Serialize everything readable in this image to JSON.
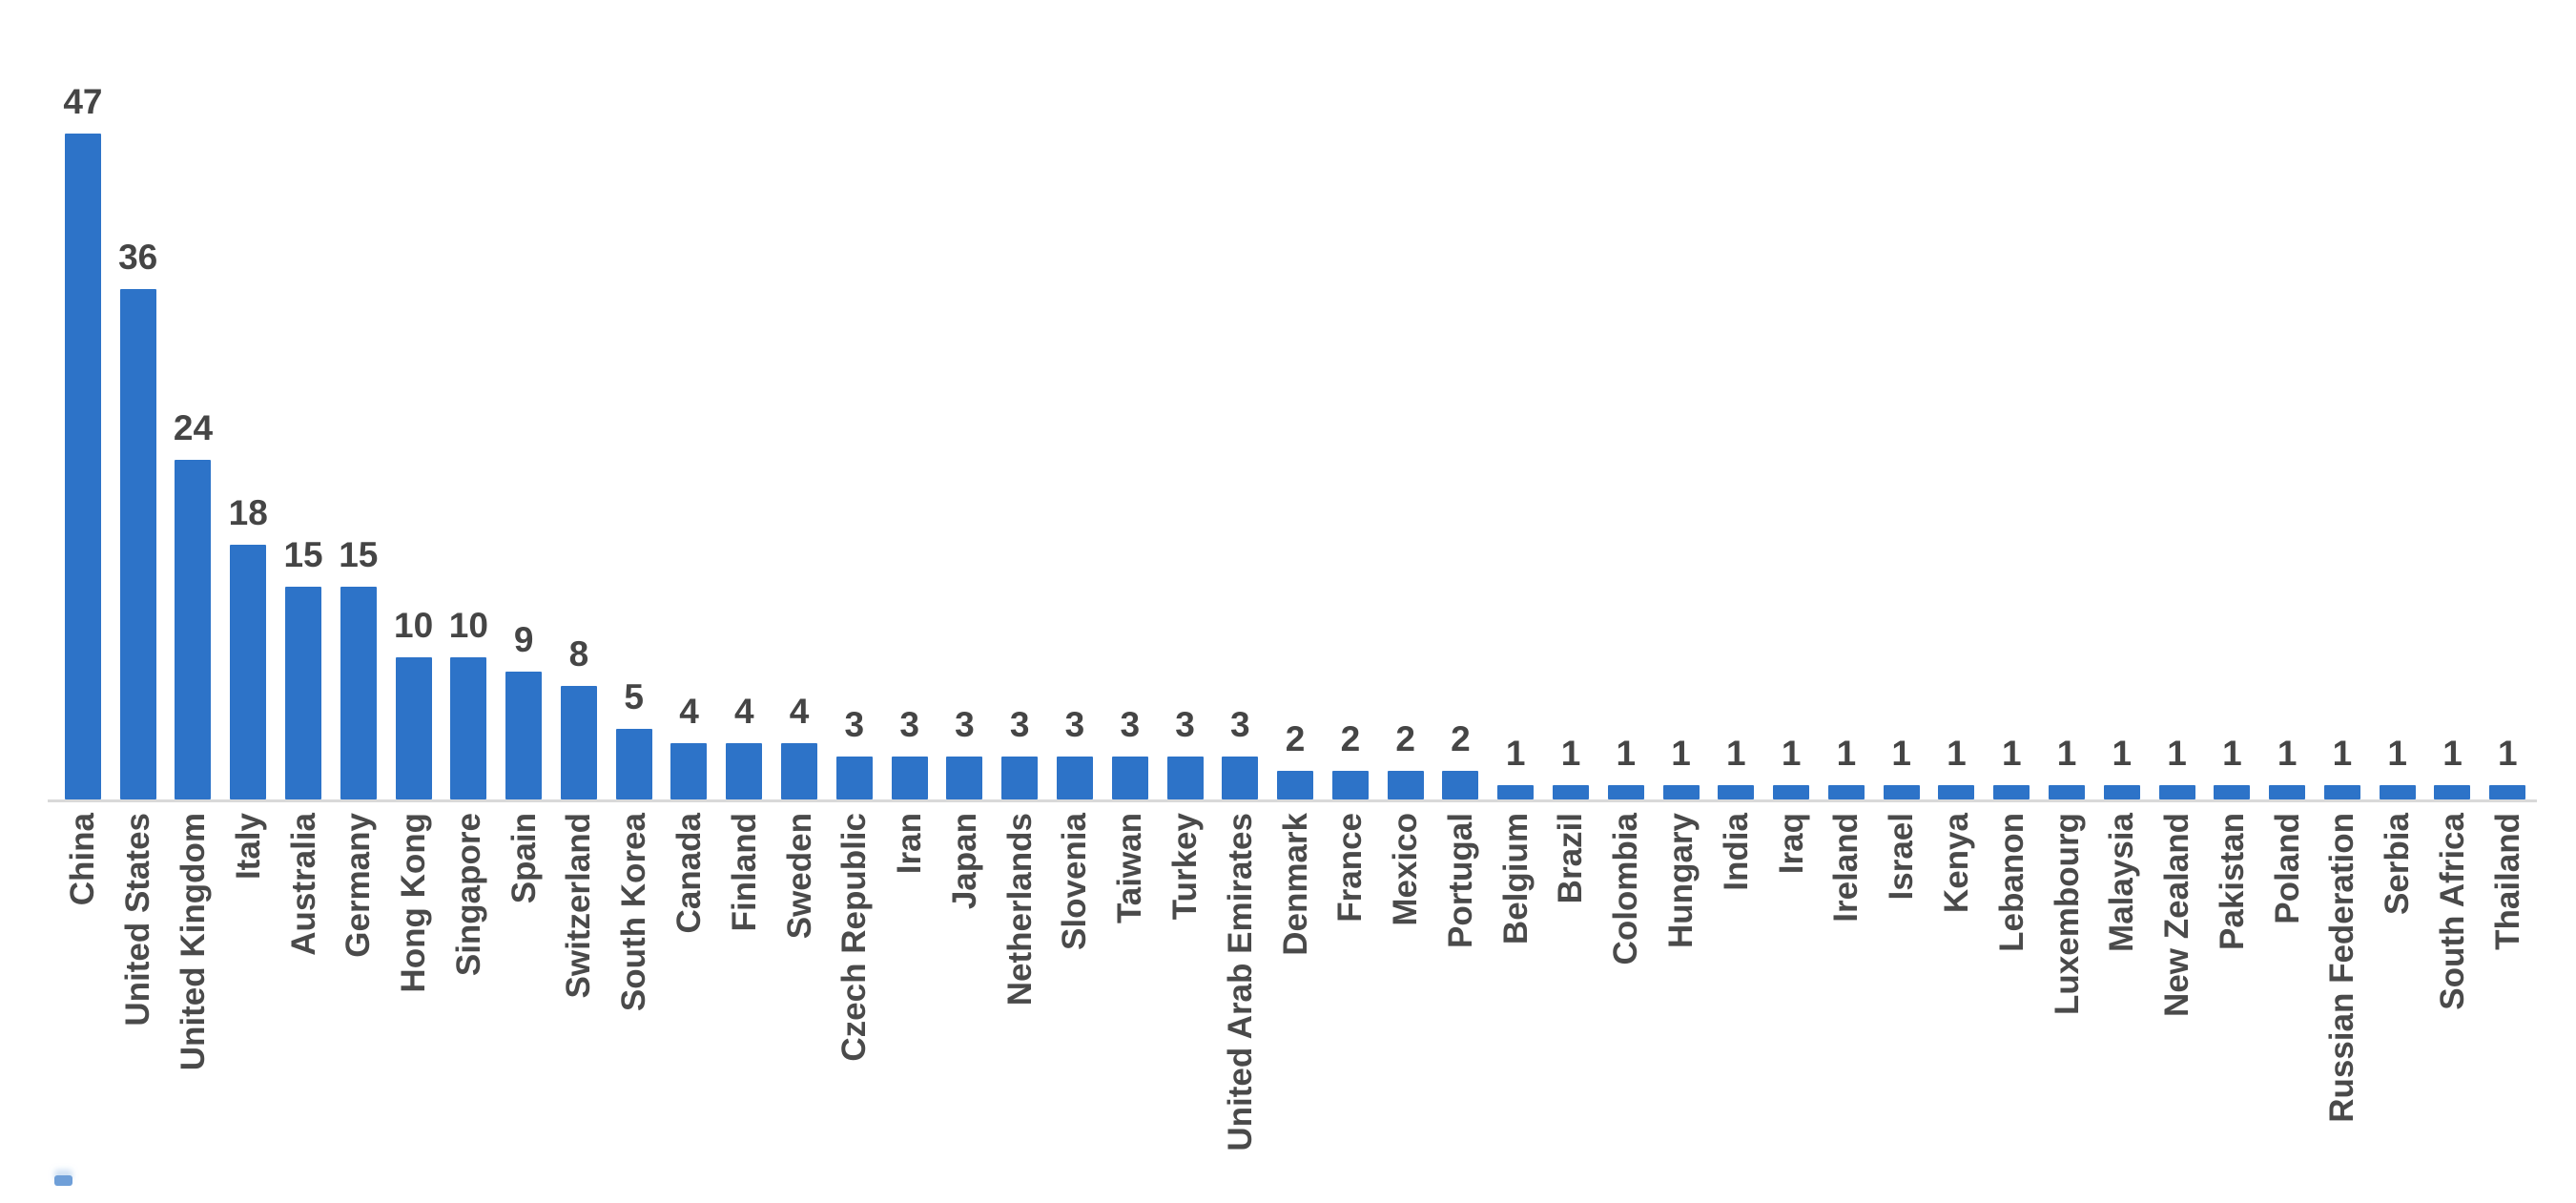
{
  "chart_data": {
    "type": "bar",
    "title": "",
    "xlabel": "",
    "ylabel": "",
    "categories": [
      "China",
      "United States",
      "United Kingdom",
      "Italy",
      "Australia",
      "Germany",
      "Hong Kong",
      "Singapore",
      "Spain",
      "Switzerland",
      "South Korea",
      "Canada",
      "Finland",
      "Sweden",
      "Czech Republic",
      "Iran",
      "Japan",
      "Netherlands",
      "Slovenia",
      "Taiwan",
      "Turkey",
      "United Arab Emirates",
      "Denmark",
      "France",
      "Mexico",
      "Portugal",
      "Belgium",
      "Brazil",
      "Colombia",
      "Hungary",
      "India",
      "Iraq",
      "Ireland",
      "Israel",
      "Kenya",
      "Lebanon",
      "Luxembourg",
      "Malaysia",
      "New Zealand",
      "Pakistan",
      "Poland",
      "Russian Federation",
      "Serbia",
      "South Africa",
      "Thailand"
    ],
    "values": [
      47,
      36,
      24,
      18,
      15,
      15,
      10,
      10,
      9,
      8,
      5,
      4,
      4,
      4,
      3,
      3,
      3,
      3,
      3,
      3,
      3,
      3,
      2,
      2,
      2,
      2,
      1,
      1,
      1,
      1,
      1,
      1,
      1,
      1,
      1,
      1,
      1,
      1,
      1,
      1,
      1,
      1,
      1,
      1,
      1
    ],
    "ylim": [
      0,
      50
    ],
    "grid": false,
    "legend_position": "none",
    "data_labels": "above-bars",
    "category_label_rotation_degrees": 90,
    "bar_color": "#2D73C8",
    "data_label_color": "#454545",
    "category_label_color": "#4a4a4a",
    "axis_line_color": "#d9d9d9",
    "background_color": "#ffffff"
  }
}
